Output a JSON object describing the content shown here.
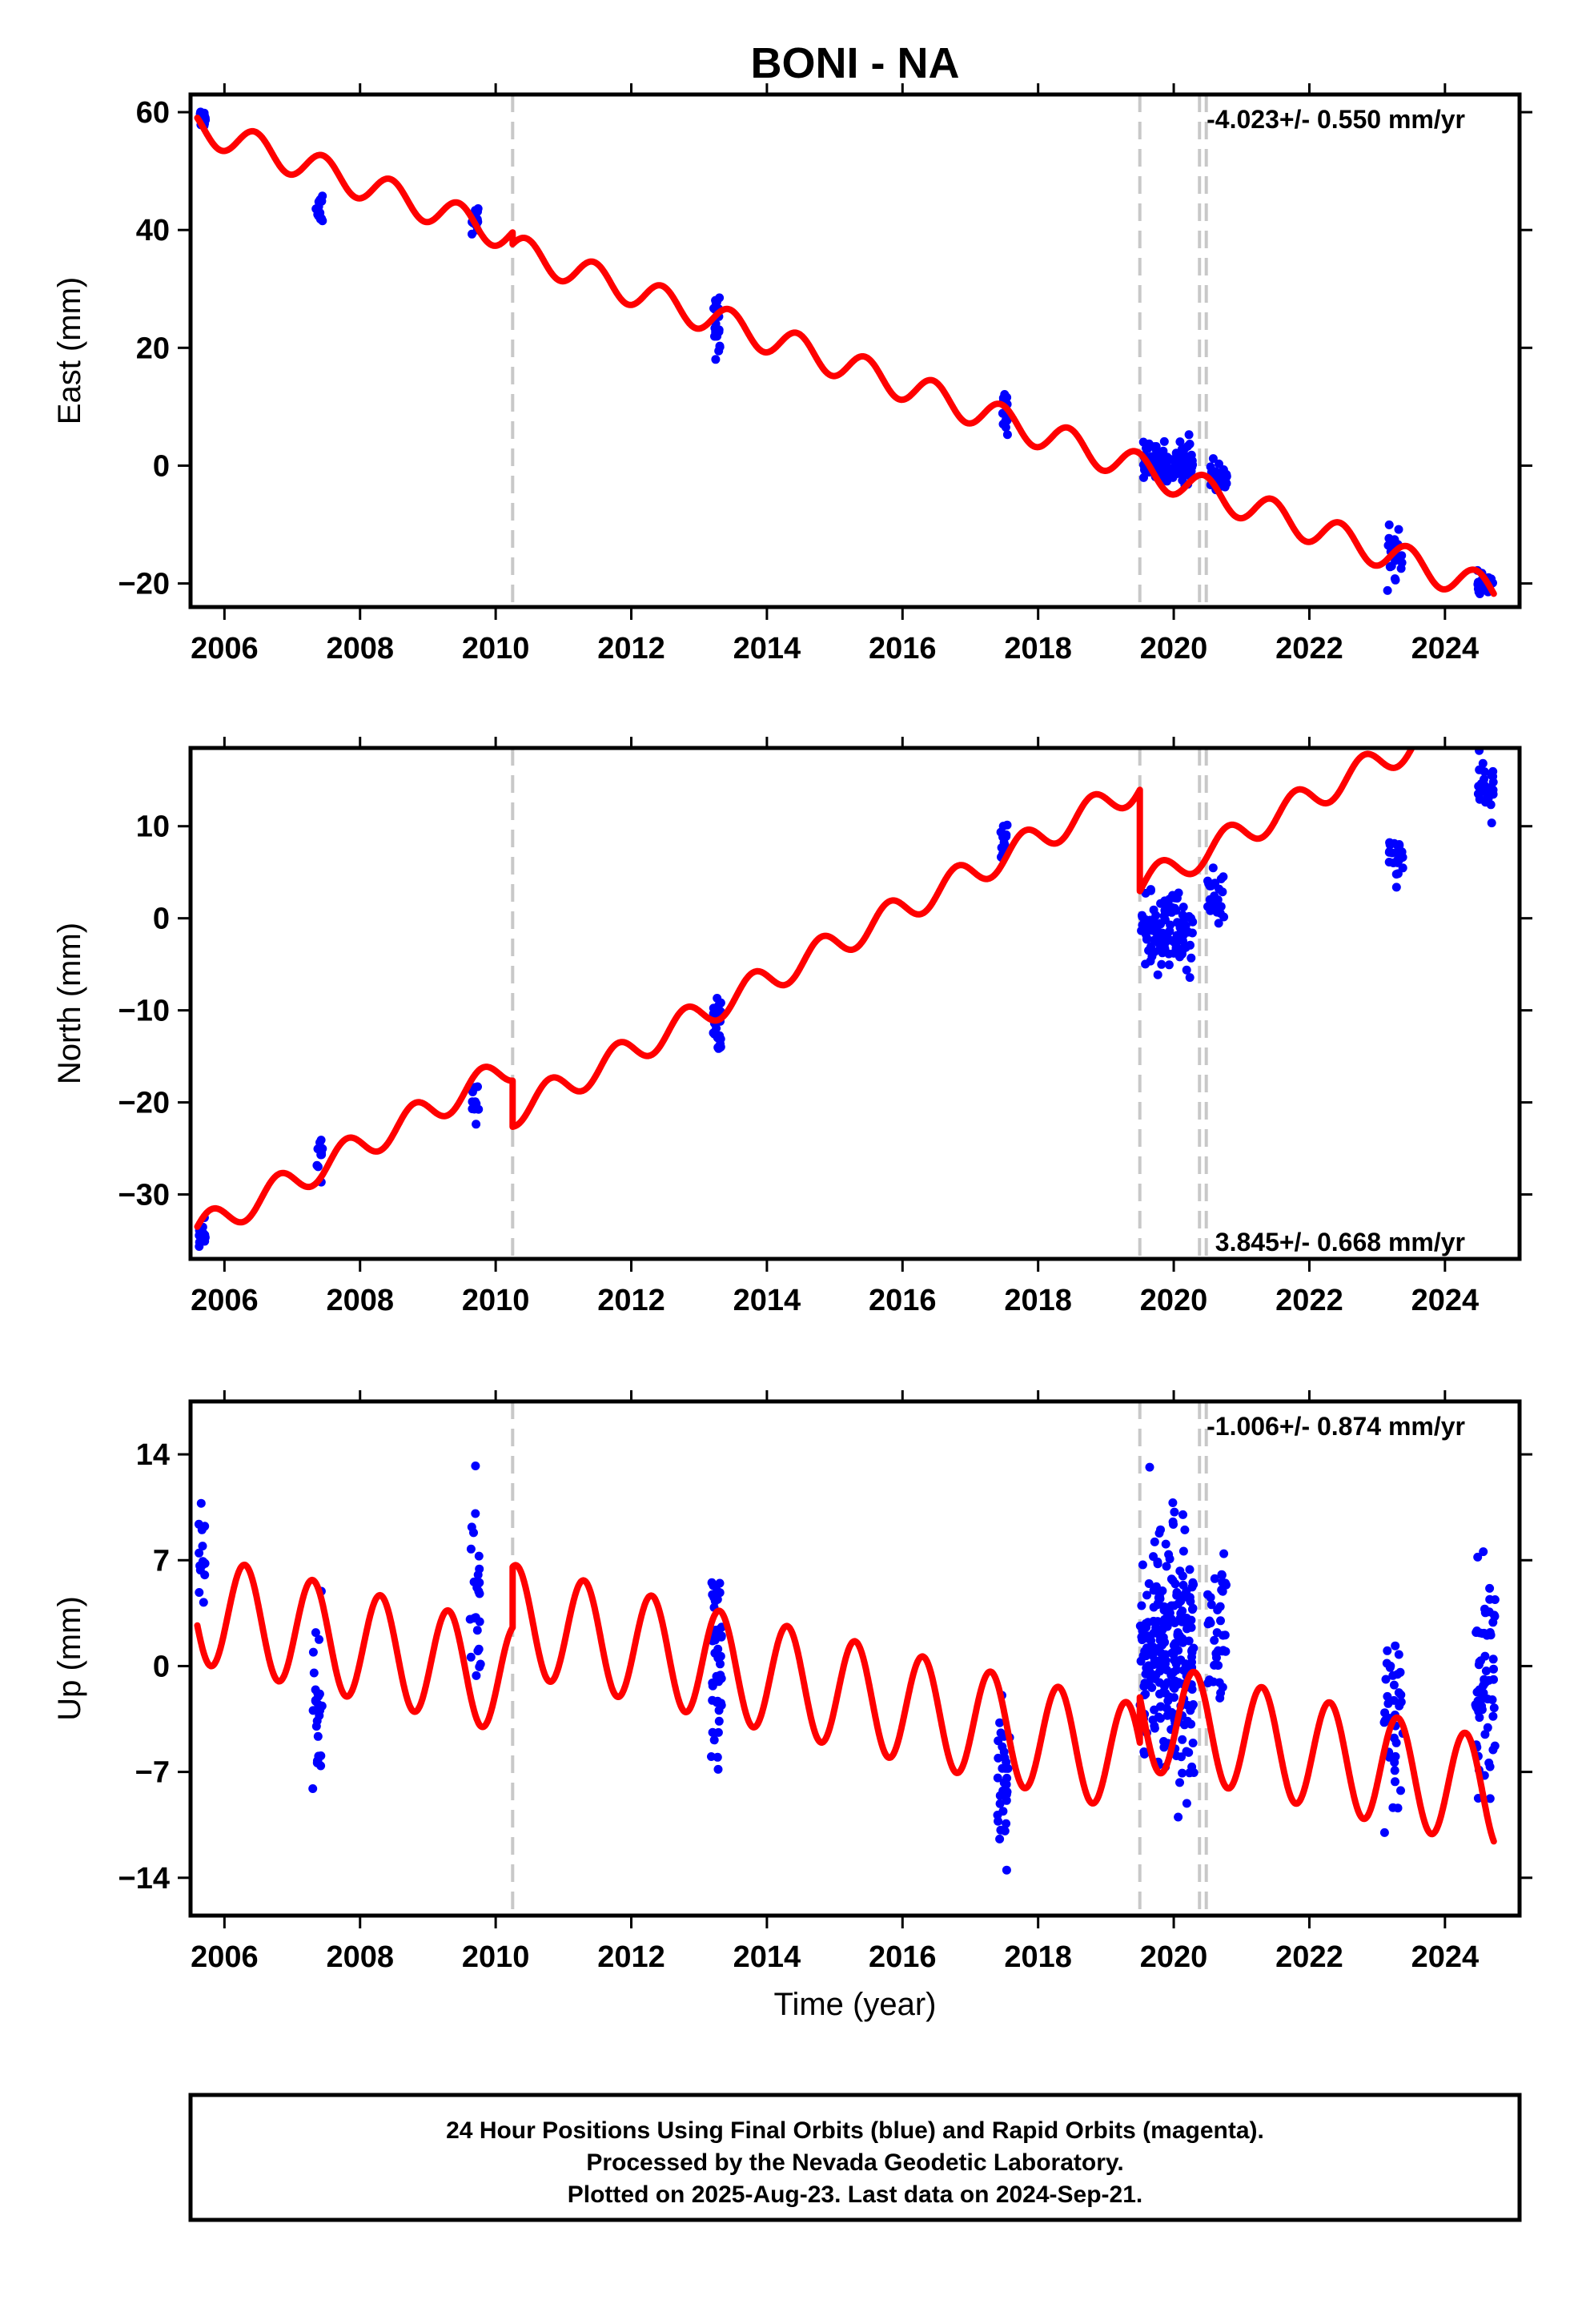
{
  "chart_data": {
    "type": "scatter",
    "title": "BONI - NA",
    "xlabel": "Time (year)",
    "xlim": [
      2005.5,
      2025.1
    ],
    "x_ticks": [
      2006,
      2008,
      2010,
      2012,
      2014,
      2016,
      2018,
      2020,
      2022,
      2024
    ],
    "x_tick_labels": [
      "2006",
      "2008",
      "2010",
      "2012",
      "2014",
      "2016",
      "2018",
      "2020",
      "2022",
      "2024"
    ],
    "break_lines": [
      2010.25,
      2019.5,
      2020.38,
      2020.48
    ],
    "colors": {
      "observations": "#0000ff",
      "model": "#ff0000",
      "breaks": "#c8c8c8"
    },
    "panels": [
      {
        "id": "east",
        "ylabel": "East (mm)",
        "ylim": [
          -24,
          63
        ],
        "y_ticks": [
          -20,
          0,
          20,
          40,
          60
        ],
        "y_tick_labels": [
          "−20",
          "0",
          "20",
          "40",
          "60"
        ],
        "rate_label": "-4.023+/- 0.550 mm/yr",
        "rate_position": "top-right",
        "model": {
          "rate": -4.023,
          "base": 57.5,
          "amplitude": 2.6,
          "phase": 0.2,
          "offsets": [
            {
              "year": 2010.25,
              "value": -2
            },
            {
              "year": 2019.5,
              "value": 0
            }
          ]
        },
        "observations": [
          {
            "t": 2005.62,
            "t_end": 2005.72,
            "center": 59.0,
            "spread": 1.5,
            "n": 14
          },
          {
            "t": 2007.35,
            "t_end": 2007.45,
            "center": 44.0,
            "spread": 2.5,
            "n": 14
          },
          {
            "t": 2009.65,
            "t_end": 2009.75,
            "center": 42.0,
            "spread": 3.0,
            "n": 16
          },
          {
            "t": 2013.2,
            "t_end": 2013.33,
            "center": 24.0,
            "spread": 4.5,
            "n": 22
          },
          {
            "t": 2017.45,
            "t_end": 2017.55,
            "center": 9.0,
            "spread": 3.0,
            "n": 16
          },
          {
            "t": 2019.55,
            "t_end": 2020.28,
            "center": 0.5,
            "spread": 3.0,
            "n": 120
          },
          {
            "t": 2020.52,
            "t_end": 2020.8,
            "center": -2.0,
            "spread": 2.2,
            "n": 30
          },
          {
            "t": 2023.15,
            "t_end": 2023.38,
            "center": -14.5,
            "spread": 3.5,
            "n": 28
          },
          {
            "t": 2024.48,
            "t_end": 2024.72,
            "center": -20.5,
            "spread": 1.8,
            "n": 30
          }
        ]
      },
      {
        "id": "north",
        "ylabel": "North (mm)",
        "ylim": [
          -37,
          18.5
        ],
        "y_ticks": [
          -30,
          -20,
          -10,
          0,
          10
        ],
        "y_tick_labels": [
          "−30",
          "−20",
          "−10",
          "0",
          "10"
        ],
        "rate_label": "3.845+/- 0.668 mm/yr",
        "rate_position": "bottom-right",
        "model": {
          "rate": 3.845,
          "base": -34.0,
          "amplitude": 1.6,
          "phase": 0.55,
          "offsets": [
            {
              "year": 2010.25,
              "value": -5
            },
            {
              "year": 2019.5,
              "value": -11
            }
          ]
        },
        "observations": [
          {
            "t": 2005.62,
            "t_end": 2005.72,
            "center": -34.5,
            "spread": 1.3,
            "n": 12
          },
          {
            "t": 2007.35,
            "t_end": 2007.45,
            "center": -26.0,
            "spread": 2.0,
            "n": 12
          },
          {
            "t": 2009.65,
            "t_end": 2009.75,
            "center": -19.5,
            "spread": 1.8,
            "n": 12
          },
          {
            "t": 2013.2,
            "t_end": 2013.33,
            "center": -12.0,
            "spread": 3.5,
            "n": 24
          },
          {
            "t": 2017.45,
            "t_end": 2017.55,
            "center": 8.0,
            "spread": 2.5,
            "n": 16
          },
          {
            "t": 2019.52,
            "t_end": 2020.28,
            "center": -1.5,
            "spread": 3.5,
            "n": 120
          },
          {
            "t": 2020.5,
            "t_end": 2020.75,
            "center": 2.0,
            "spread": 3.0,
            "n": 30
          },
          {
            "t": 2023.15,
            "t_end": 2023.38,
            "center": 6.5,
            "spread": 2.0,
            "n": 26
          },
          {
            "t": 2024.48,
            "t_end": 2024.72,
            "center": 14.0,
            "spread": 2.5,
            "n": 32
          }
        ]
      },
      {
        "id": "up",
        "ylabel": "Up (mm)",
        "ylim": [
          -16.5,
          17.5
        ],
        "y_ticks": [
          -14,
          -7,
          0,
          7,
          14
        ],
        "y_tick_labels": [
          "−14",
          "−7",
          "0",
          "7",
          "14"
        ],
        "rate_label": "-1.006+/- 0.874 mm/yr",
        "rate_position": "top-right",
        "model": {
          "rate": -1.006,
          "base": 3.8,
          "amplitude": 3.6,
          "phase": 0.05,
          "offsets": [
            {
              "year": 2010.25,
              "value": 4
            },
            {
              "year": 2019.5,
              "value": 3
            }
          ]
        },
        "observations": [
          {
            "t": 2005.62,
            "t_end": 2005.72,
            "center": 7.5,
            "spread": 2.5,
            "n": 14
          },
          {
            "t": 2007.3,
            "t_end": 2007.45,
            "center": -3.0,
            "spread": 6.0,
            "n": 26
          },
          {
            "t": 2009.62,
            "t_end": 2009.78,
            "center": 5.0,
            "spread": 6.0,
            "n": 24
          },
          {
            "t": 2013.18,
            "t_end": 2013.35,
            "center": 0.0,
            "spread": 6.0,
            "n": 44
          },
          {
            "t": 2017.4,
            "t_end": 2017.58,
            "center": -7.5,
            "spread": 4.5,
            "n": 34
          },
          {
            "t": 2019.5,
            "t_end": 2020.3,
            "center": 1.0,
            "spread": 7.0,
            "n": 260
          },
          {
            "t": 2020.5,
            "t_end": 2020.78,
            "center": 2.0,
            "spread": 5.5,
            "n": 40
          },
          {
            "t": 2023.1,
            "t_end": 2023.38,
            "center": -5.0,
            "spread": 6.0,
            "n": 44
          },
          {
            "t": 2024.45,
            "t_end": 2024.75,
            "center": -1.0,
            "spread": 7.0,
            "n": 64
          }
        ]
      }
    ]
  },
  "footer": {
    "lines": [
      "24 Hour Positions Using Final Orbits (blue) and Rapid Orbits (magenta).",
      "Processed by the Nevada Geodetic Laboratory.",
      "Plotted on 2025-Aug-23. Last data on 2024-Sep-21."
    ]
  }
}
